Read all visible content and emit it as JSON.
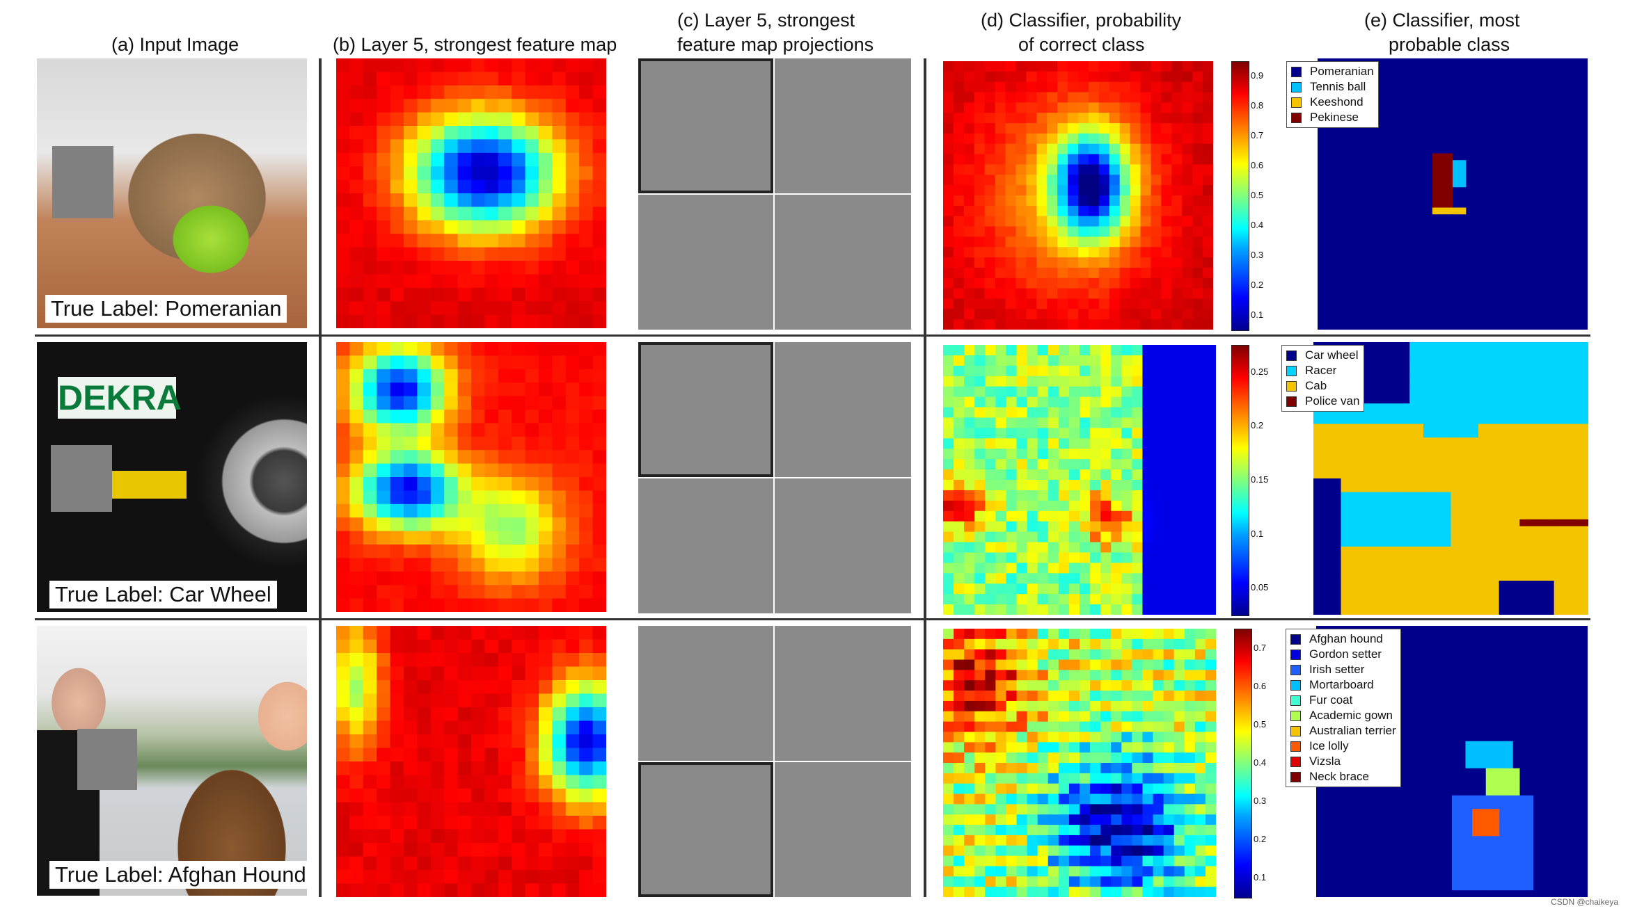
{
  "headers": {
    "a": "(a) Input Image",
    "b": "(b) Layer 5, strongest feature map",
    "c1": "(c) Layer 5, strongest",
    "c2": "feature map projections",
    "d1": "(d) Classifier, probability",
    "d2": "of correct class",
    "e1": "(e) Classifier, most",
    "e2": "probable class"
  },
  "rows": [
    {
      "true_label": "True Label: Pomeranian",
      "colorbar_ticks": [
        "0.9",
        "0.8",
        "0.7",
        "0.6",
        "0.5",
        "0.4",
        "0.3",
        "0.2",
        "0.1"
      ],
      "legend": [
        {
          "label": "Pomeranian",
          "color": "#00008b"
        },
        {
          "label": "Tennis ball",
          "color": "#00bfff"
        },
        {
          "label": "Keeshond",
          "color": "#f5c400"
        },
        {
          "label": "Pekinese",
          "color": "#800000"
        }
      ]
    },
    {
      "true_label": "True Label: Car Wheel",
      "colorbar_ticks": [
        "0.25",
        "0.2",
        "0.15",
        "0.1",
        "0.05"
      ],
      "legend": [
        {
          "label": "Car wheel",
          "color": "#00008b"
        },
        {
          "label": "Racer",
          "color": "#00d4ff"
        },
        {
          "label": "Cab",
          "color": "#f5c400"
        },
        {
          "label": "Police van",
          "color": "#800000"
        }
      ]
    },
    {
      "true_label": "True Label: Afghan Hound",
      "colorbar_ticks": [
        "0.7",
        "0.6",
        "0.5",
        "0.4",
        "0.3",
        "0.2",
        "0.1"
      ],
      "legend": [
        {
          "label": "Afghan hound",
          "color": "#00008b"
        },
        {
          "label": "Gordon setter",
          "color": "#0000e0"
        },
        {
          "label": "Irish setter",
          "color": "#1f5fff"
        },
        {
          "label": "Mortarboard",
          "color": "#00bfff"
        },
        {
          "label": "Fur coat",
          "color": "#40ffd0"
        },
        {
          "label": "Academic gown",
          "color": "#b0ff50"
        },
        {
          "label": "Australian terrier",
          "color": "#f5c400"
        },
        {
          "label": "Ice lolly",
          "color": "#ff5a00"
        },
        {
          "label": "Vizsla",
          "color": "#e00000"
        },
        {
          "label": "Neck brace",
          "color": "#800000"
        }
      ]
    }
  ],
  "watermark": "CSDN @chaikeya"
}
